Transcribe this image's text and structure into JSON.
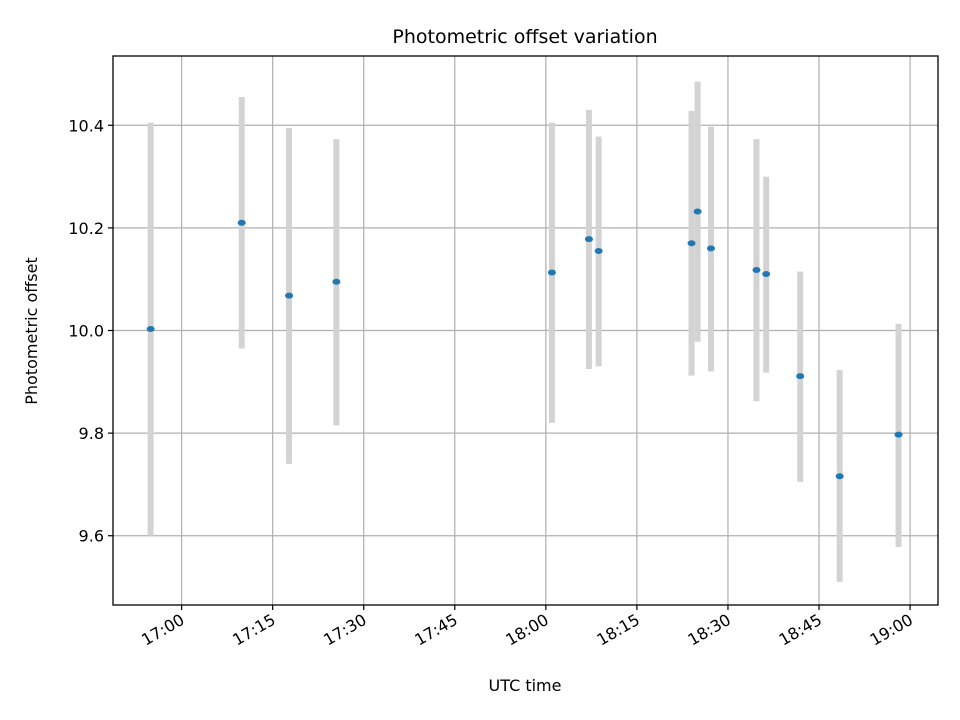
{
  "chart_data": {
    "type": "scatter",
    "title": "Photometric offset variation",
    "xlabel": "UTC time",
    "ylabel": "Photometric offset",
    "x_ticks": [
      "17:00",
      "17:15",
      "17:30",
      "17:45",
      "18:00",
      "18:15",
      "18:30",
      "18:45",
      "19:00"
    ],
    "x_tick_minutes": [
      1020,
      1035,
      1050,
      1065,
      1080,
      1095,
      1110,
      1125,
      1140
    ],
    "y_ticks": [
      "9.6",
      "9.8",
      "10.0",
      "10.2",
      "10.4"
    ],
    "y_tick_values": [
      9.6,
      9.8,
      10.0,
      10.2,
      10.4
    ],
    "xlim": [
      "16:48.7",
      "19:04.6"
    ],
    "xlim_minutes": [
      1008.7,
      1144.6
    ],
    "ylim": [
      9.465,
      10.535
    ],
    "grid": true,
    "marker_color": "#1f77b4",
    "errorbar_color": "#d3d3d3",
    "points": [
      {
        "time": "16:54.9",
        "t": 1014.9,
        "y": 10.003,
        "lo": 9.6,
        "hi": 10.405
      },
      {
        "time": "17:09.9",
        "t": 1029.9,
        "y": 10.21,
        "lo": 9.965,
        "hi": 10.455
      },
      {
        "time": "17:17.7",
        "t": 1037.7,
        "y": 10.068,
        "lo": 9.74,
        "hi": 10.395
      },
      {
        "time": "17:25.5",
        "t": 1045.5,
        "y": 10.095,
        "lo": 9.815,
        "hi": 10.373
      },
      {
        "time": "18:01.0",
        "t": 1081.0,
        "y": 10.113,
        "lo": 9.82,
        "hi": 10.405
      },
      {
        "time": "18:07.1",
        "t": 1087.1,
        "y": 10.178,
        "lo": 9.925,
        "hi": 10.43
      },
      {
        "time": "18:08.7",
        "t": 1088.7,
        "y": 10.155,
        "lo": 9.93,
        "hi": 10.378
      },
      {
        "time": "18:24.0",
        "t": 1104.0,
        "y": 10.17,
        "lo": 9.912,
        "hi": 10.428
      },
      {
        "time": "18:25.0",
        "t": 1105.0,
        "y": 10.232,
        "lo": 9.978,
        "hi": 10.485
      },
      {
        "time": "18:27.2",
        "t": 1107.2,
        "y": 10.16,
        "lo": 9.92,
        "hi": 10.397
      },
      {
        "time": "18:34.7",
        "t": 1114.7,
        "y": 10.118,
        "lo": 9.862,
        "hi": 10.373
      },
      {
        "time": "18:36.3",
        "t": 1116.3,
        "y": 10.11,
        "lo": 9.918,
        "hi": 10.3
      },
      {
        "time": "18:41.9",
        "t": 1121.9,
        "y": 9.911,
        "lo": 9.705,
        "hi": 10.115
      },
      {
        "time": "18:48.4",
        "t": 1128.4,
        "y": 9.716,
        "lo": 9.51,
        "hi": 9.923
      },
      {
        "time": "18:58.1",
        "t": 1138.1,
        "y": 9.797,
        "lo": 9.578,
        "hi": 10.013
      }
    ]
  }
}
